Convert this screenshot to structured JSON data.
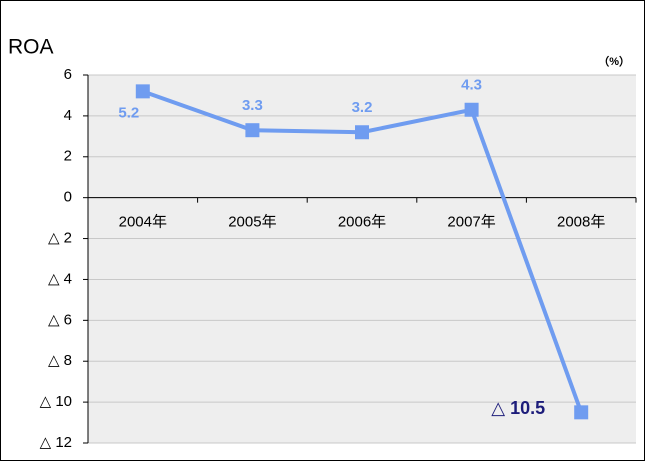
{
  "chart_data": {
    "type": "line",
    "title": "ROA",
    "unit_label": "（%）",
    "categories": [
      "2004年",
      "2005年",
      "2006年",
      "2007年",
      "2008年"
    ],
    "series": [
      {
        "name": "ROA",
        "color": "#6f9cf0",
        "values": [
          5.2,
          3.3,
          3.2,
          4.3,
          -10.5
        ],
        "value_labels": [
          "5.2",
          "3.3",
          "3.2",
          "4.3",
          "△ 10.5"
        ]
      }
    ],
    "ylim": [
      -12,
      6
    ],
    "yticks": [
      6,
      4,
      2,
      0,
      {
        "value": -2,
        "label": "△ 2"
      },
      {
        "value": -4,
        "label": "△ 4"
      },
      {
        "value": -6,
        "label": "△ 6"
      },
      {
        "value": -8,
        "label": "△ 8"
      },
      {
        "value": -10,
        "label": "△ 10"
      },
      {
        "value": -12,
        "label": "△ 12"
      }
    ],
    "grid": true
  }
}
